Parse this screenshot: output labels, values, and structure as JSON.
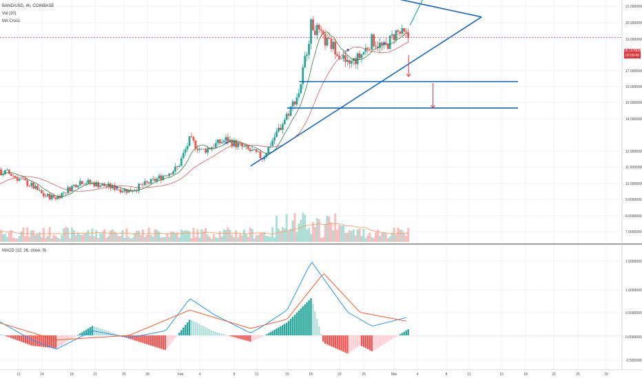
{
  "legend": {
    "symbol": "BAND/USD, 4h, COINBASE",
    "volume": "Vol (20)",
    "ma_cross": "MA Cross",
    "macd": "MACD (12, 26, close, 9)"
  },
  "price_axis": [
    "21.0000000",
    "20.0000000",
    "19.0000000",
    "17.0000000",
    "16.0000000",
    "15.0000000",
    "14.0000000",
    "12.0000000",
    "11.0000000",
    "10.0000000",
    "9.0000000",
    "8.0000000",
    "7.0000000"
  ],
  "price_badge": {
    "price": "18.1578000",
    "countdown": "02:09:49"
  },
  "macd_axis": [
    "1.5000000",
    "1.0000000",
    "0.5000000",
    "0.0000000",
    "-0.5000000"
  ],
  "time_axis": [
    "11",
    "14",
    "18",
    "21",
    "25",
    "28",
    "Feb",
    "4",
    "8",
    "11",
    "15",
    "18",
    "22",
    "25",
    "Mar",
    "4",
    "8",
    "11",
    "15",
    "18",
    "22",
    "25",
    "29"
  ],
  "colors": {
    "up": "#26a69a",
    "down": "#ef5350",
    "trendline": "#1565c0",
    "arrow_up": "#26a69a",
    "arrow_down": "#e0343b",
    "macd_line": "#2196f3",
    "signal_line": "#ff5722",
    "ma_fast": "#2e7d32"
  },
  "chart_data": {
    "type": "candlestick",
    "symbol": "BAND/USD",
    "interval": "4h",
    "exchange": "COINBASE",
    "last_price": 18.1578,
    "close_anchors": [
      {
        "date": "Jan 10",
        "close": 10.3
      },
      {
        "date": "Jan 11",
        "close": 10.0
      },
      {
        "date": "Jan 12",
        "close": 8.6
      },
      {
        "date": "Jan 13",
        "close": 8.3
      },
      {
        "date": "Jan 15",
        "close": 9.3
      },
      {
        "date": "Jan 17",
        "close": 10.0
      },
      {
        "date": "Jan 18",
        "close": 10.0
      },
      {
        "date": "Jan 20",
        "close": 9.2
      },
      {
        "date": "Jan 21",
        "close": 8.6
      },
      {
        "date": "Jan 22",
        "close": 8.5
      },
      {
        "date": "Jan 24",
        "close": 9.5
      },
      {
        "date": "Jan 26",
        "close": 9.2
      },
      {
        "date": "Jan 28",
        "close": 8.9
      },
      {
        "date": "Jan 30",
        "close": 9.5
      },
      {
        "date": "Feb 1",
        "close": 10.3
      },
      {
        "date": "Feb 2",
        "close": 12.0
      },
      {
        "date": "Feb 3",
        "close": 11.3
      },
      {
        "date": "Feb 5",
        "close": 12.0
      },
      {
        "date": "Feb 7",
        "close": 11.3
      },
      {
        "date": "Feb 8",
        "close": 10.9
      },
      {
        "date": "Feb 9",
        "close": 12.2
      },
      {
        "date": "Feb 10",
        "close": 13.5
      },
      {
        "date": "Feb 11",
        "close": 14.9
      },
      {
        "date": "Feb 12",
        "close": 19.0
      },
      {
        "date": "Feb 13",
        "close": 18.0
      },
      {
        "date": "Feb 14",
        "close": 17.5
      },
      {
        "date": "Feb 15",
        "close": 16.5
      },
      {
        "date": "Feb 16",
        "close": 17.0
      },
      {
        "date": "Feb 17",
        "close": 18.0
      },
      {
        "date": "Feb 18",
        "close": 17.5
      },
      {
        "date": "Feb 19",
        "close": 18.5
      },
      {
        "date": "Feb 20",
        "close": 18.16
      }
    ],
    "drawn_levels": [
      {
        "type": "horizontal",
        "price": 15.5
      },
      {
        "type": "horizontal",
        "price": 13.9
      }
    ],
    "macd": {
      "axis_range": [
        -0.6,
        1.7
      ],
      "macd_line": [
        {
          "date": "Jan 11",
          "value": 0.85
        },
        {
          "date": "Jan 13",
          "value": -0.35
        },
        {
          "date": "Jan 14",
          "value": -0.4
        },
        {
          "date": "Jan 17",
          "value": 0.35
        },
        {
          "date": "Jan 20",
          "value": -0.1
        },
        {
          "date": "Jan 22",
          "value": -0.3
        },
        {
          "date": "Jan 25",
          "value": 0.1
        },
        {
          "date": "Jan 28",
          "value": -0.05
        },
        {
          "date": "Jan 31",
          "value": 0.1
        },
        {
          "date": "Feb 2",
          "value": 0.8
        },
        {
          "date": "Feb 4",
          "value": 0.45
        },
        {
          "date": "Feb 7",
          "value": 0.05
        },
        {
          "date": "Feb 8",
          "value": 0.2
        },
        {
          "date": "Feb 10",
          "value": 0.55
        },
        {
          "date": "Feb 12",
          "value": 1.6
        },
        {
          "date": "Feb 15",
          "value": 0.5
        },
        {
          "date": "Feb 17",
          "value": 0.2
        },
        {
          "date": "Feb 20",
          "value": 0.4
        }
      ],
      "signal_line": [
        {
          "date": "Jan 11",
          "value": 0.7
        },
        {
          "date": "Jan 14",
          "value": -0.2
        },
        {
          "date": "Jan 17",
          "value": 0.3
        },
        {
          "date": "Jan 22",
          "value": -0.1
        },
        {
          "date": "Jan 28",
          "value": 0.0
        },
        {
          "date": "Feb 2",
          "value": 0.55
        },
        {
          "date": "Feb 7",
          "value": 0.15
        },
        {
          "date": "Feb 10",
          "value": 0.35
        },
        {
          "date": "Feb 13",
          "value": 1.35
        },
        {
          "date": "Feb 16",
          "value": 0.5
        },
        {
          "date": "Feb 20",
          "value": 0.3
        }
      ]
    }
  }
}
